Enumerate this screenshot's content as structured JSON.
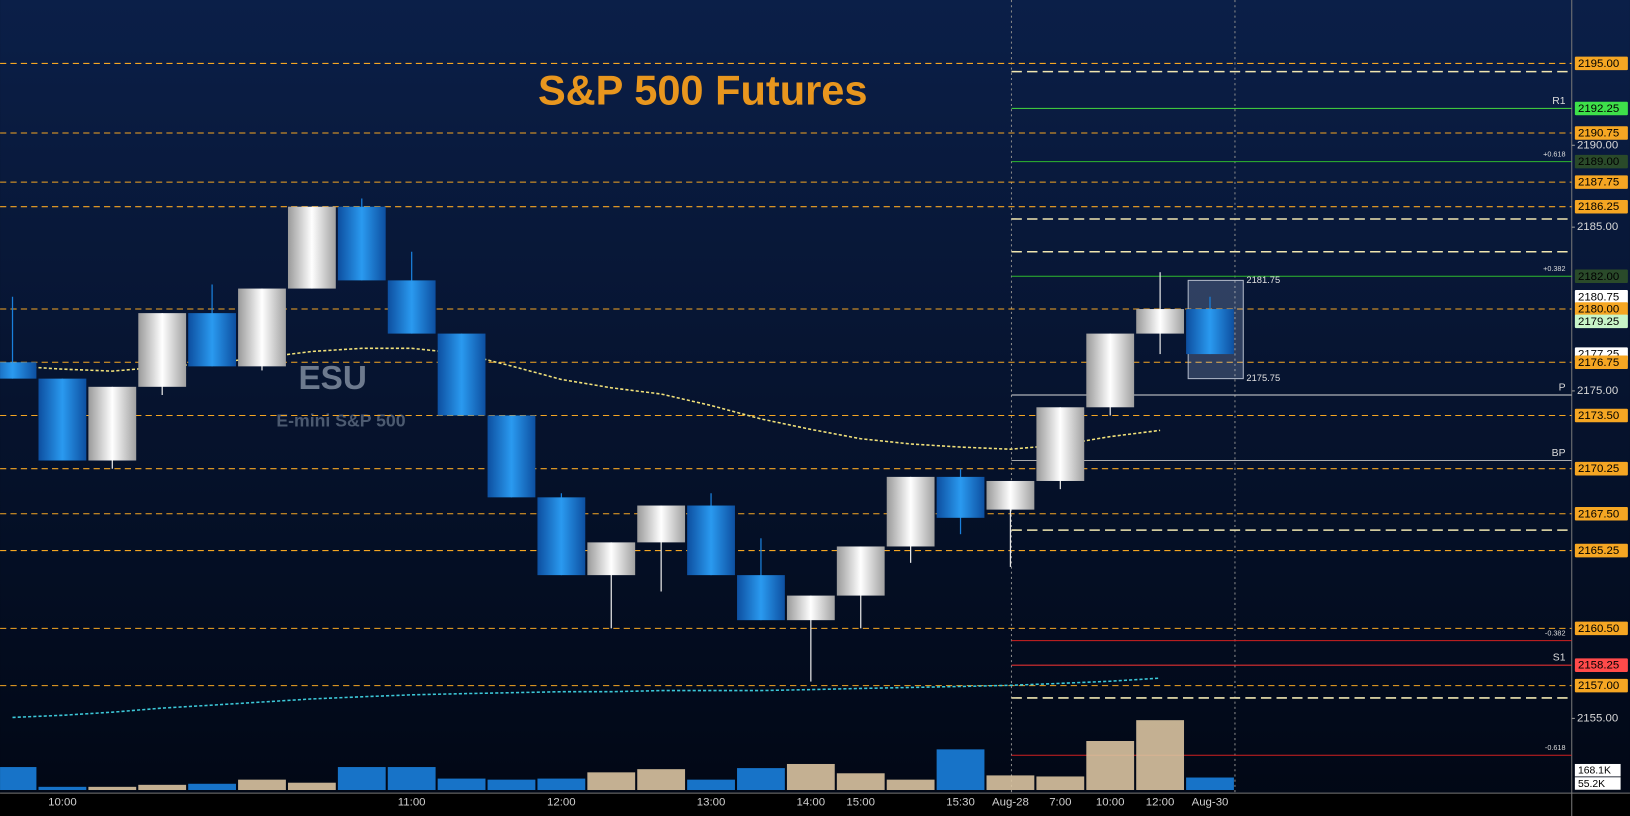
{
  "chart_data": {
    "type": "candlestick",
    "title": "S&P 500 Futures",
    "watermark": "ESU",
    "subtitle": "E-mini S&P 500",
    "categories": [
      null,
      "10:00",
      null,
      null,
      null,
      null,
      null,
      null,
      "11:00",
      null,
      null,
      "12:00",
      null,
      null,
      "13:00",
      null,
      "14:00",
      "15:00",
      null,
      "15:30",
      "Aug-28",
      "7:00",
      "10:00",
      "12:00",
      "Aug-30"
    ],
    "open": [
      2176.75,
      2175.75,
      2170.75,
      2175.25,
      2179.75,
      2176.5,
      2181.25,
      2186.25,
      2181.75,
      2178.5,
      2173.5,
      2168.5,
      2163.75,
      2165.75,
      2168,
      2163.75,
      2161,
      2162.5,
      2165.5,
      2169.75,
      2167.75,
      2169.5,
      2174,
      2178.5,
      2180
    ],
    "high": [
      2180.75,
      2175.75,
      2175.25,
      2179.75,
      2181.5,
      2181.25,
      2186.25,
      2186.75,
      2183.5,
      2178.5,
      2173.5,
      2168.75,
      2165.75,
      2168,
      2168.75,
      2166,
      2162.5,
      2165.5,
      2169.75,
      2170.25,
      2169.5,
      2174,
      2178.5,
      2182.25,
      2180.75
    ],
    "low": [
      2175.75,
      2170.75,
      2170.25,
      2174.75,
      2176.5,
      2176.25,
      2181.25,
      2181.75,
      2178.5,
      2173.5,
      2168.5,
      2163.75,
      2160.5,
      2162.75,
      2163.75,
      2161,
      2157.25,
      2160.5,
      2164.5,
      2166.25,
      2164.25,
      2169,
      2173.5,
      2177.25,
      2177.25
    ],
    "close": [
      2175.75,
      2170.75,
      2175.25,
      2179.75,
      2176.5,
      2181.25,
      2186.25,
      2181.75,
      2178.5,
      2173.5,
      2168.5,
      2163.75,
      2165.75,
      2168,
      2163.75,
      2161,
      2162.5,
      2165.5,
      2169.75,
      2167.25,
      2169.5,
      2174,
      2178.5,
      2180,
      2177.25
    ],
    "up_color": "#e6e6e6",
    "down_color": "#1a80dc",
    "ylim": [
      2150.5,
      2199
    ],
    "yticks": [
      {
        "value": 2155,
        "label": "2155.00"
      },
      {
        "value": 2175,
        "label": "2175.00"
      },
      {
        "value": 2185,
        "label": "2185.00"
      },
      {
        "value": 2190,
        "label": "2190.00"
      }
    ],
    "levels": [
      {
        "value": 2195,
        "label": "2195.00",
        "color": "#f5a623"
      },
      {
        "value": 2192.25,
        "label": "2192.25",
        "color": "#3ee04a"
      },
      {
        "value": 2190.75,
        "label": "2190.75",
        "color": "#f5a623"
      },
      {
        "value": 2189,
        "label": "2189.00",
        "color": "#2a4a2a"
      },
      {
        "value": 2187.75,
        "label": "2187.75",
        "color": "#f5a623"
      },
      {
        "value": 2186.25,
        "label": "2186.25",
        "color": "#f5a623"
      },
      {
        "value": 2182,
        "label": "2182.00",
        "color": "#2a4a2a"
      },
      {
        "value": 2180.75,
        "label": "2180.75",
        "color": "#ffffff"
      },
      {
        "value": 2180,
        "label": "2180.00",
        "color": "#f5a623"
      },
      {
        "value": 2179.25,
        "label": "2179.25",
        "color": "#c8f5c8"
      },
      {
        "value": 2177.25,
        "label": "2177.25",
        "color": "#ffffff"
      },
      {
        "value": 2176.75,
        "label": "2176.75",
        "color": "#f5a623"
      },
      {
        "value": 2173.5,
        "label": "2173.50",
        "color": "#f5a623"
      },
      {
        "value": 2170.25,
        "label": "2170.25",
        "color": "#f5a623"
      },
      {
        "value": 2167.5,
        "label": "2167.50",
        "color": "#f5a623"
      },
      {
        "value": 2165.25,
        "label": "2165.25",
        "color": "#f5a623"
      },
      {
        "value": 2160.5,
        "label": "2160.50",
        "color": "#f5a623"
      },
      {
        "value": 2158.25,
        "label": "2158.25",
        "color": "#ff4a4a"
      },
      {
        "value": 2157,
        "label": "2157.00",
        "color": "#f5a623"
      }
    ],
    "pivots": [
      {
        "value": 2192.25,
        "label": "R1",
        "color": "#3ec43e"
      },
      {
        "value": 2189,
        "label": "+0.618",
        "color": "#2eb82e"
      },
      {
        "value": 2182,
        "label": "+0.382",
        "color": "#2eb82e"
      },
      {
        "value": 2174.75,
        "label": "P",
        "color": "#d8d8d8"
      },
      {
        "value": 2170.75,
        "label": "BP",
        "color": "#aaaaaa"
      },
      {
        "value": 2159.75,
        "label": "-0.382",
        "color": "#d02020"
      },
      {
        "value": 2158.25,
        "label": "S1",
        "color": "#e03030"
      },
      {
        "value": 2152.75,
        "label": "-0.618",
        "color": "#d02020"
      }
    ],
    "lines": [
      2194.5,
      2185.5,
      2183.5,
      2166.5,
      2156.25
    ],
    "line_color": "#f0e6b0",
    "averages": [
      {
        "color": "#f2e27a",
        "values": [
          2176.52,
          2176.33,
          2176.21,
          2176.46,
          2176.71,
          2177.03,
          2177.41,
          2177.6,
          2177.6,
          2177.29,
          2176.52,
          2175.7,
          2175.19,
          2174.81,
          2174.11,
          2173.29,
          2172.65,
          2172.08,
          2171.76,
          2171.57,
          2171.44,
          2171.7,
          2172.21,
          2172.59,
          null
        ]
      },
      {
        "color": "#3cc8d8",
        "values": [
          2155.06,
          2155.19,
          2155.38,
          2155.63,
          2155.81,
          2156.0,
          2156.19,
          2156.32,
          2156.44,
          2156.51,
          2156.57,
          2156.63,
          2156.63,
          2156.7,
          2156.7,
          2156.7,
          2156.76,
          2156.83,
          2156.89,
          2156.95,
          2157.02,
          2157.14,
          2157.27,
          2157.46,
          null
        ]
      }
    ],
    "range_box": {
      "high": {
        "value": 2181.75,
        "label": "2181.75"
      },
      "low": {
        "value": 2175.75,
        "label": "2175.75"
      }
    },
    "volume": {
      "ylim": [
        0,
        600
      ],
      "up_color": "#d9c3a0",
      "values": [
        195,
        27,
        27,
        44,
        53,
        88,
        62,
        195,
        195,
        97,
        88,
        97,
        150,
        177,
        88,
        186,
        221,
        142,
        88,
        345,
        124,
        115,
        416,
        593,
        106
      ],
      "tags": [
        {
          "value": 168.1,
          "label": "168.1K"
        },
        {
          "value": 55.2,
          "label": "55.2K"
        }
      ]
    }
  }
}
